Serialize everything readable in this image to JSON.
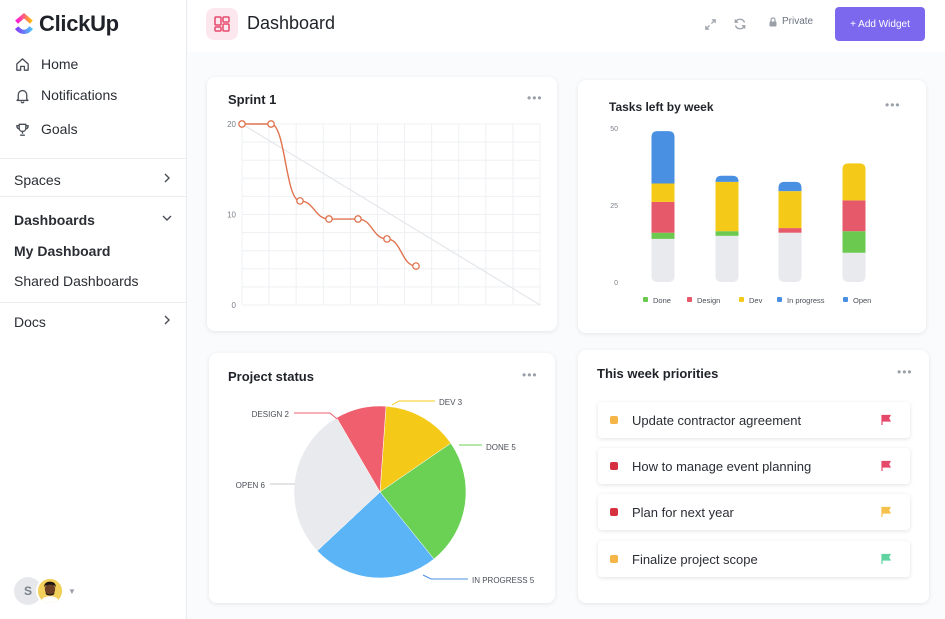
{
  "app": {
    "name": "ClickUp"
  },
  "sidebar": {
    "nav": [
      {
        "label": "Home",
        "icon": "home-icon"
      },
      {
        "label": "Notifications",
        "icon": "bell-icon"
      },
      {
        "label": "Goals",
        "icon": "trophy-icon"
      }
    ],
    "spaces_label": "Spaces",
    "dashboards_label": "Dashboards",
    "my_dashboard_label": "My Dashboard",
    "shared_dashboards_label": "Shared Dashboards",
    "docs_label": "Docs",
    "avatar_initial": "S"
  },
  "header": {
    "title": "Dashboard",
    "private_label": "Private",
    "add_widget_label": "+ Add Widget"
  },
  "sprint": {
    "title": "Sprint 1",
    "chart_data": {
      "type": "line",
      "title": "Sprint 1",
      "y_ticks": [
        "20",
        "10",
        "0"
      ],
      "ylim": [
        0,
        20
      ],
      "series": [
        {
          "values": [
            20,
            20,
            11.5,
            9.5,
            9.5,
            7.3,
            4.3
          ]
        }
      ],
      "ideal_line": [
        20,
        0
      ],
      "grid": true
    }
  },
  "tasks": {
    "title": "Tasks left by week",
    "chart_data": {
      "type": "bar",
      "stacked": true,
      "title": "Tasks left by week",
      "y_ticks": [
        "50",
        "25",
        "0"
      ],
      "ylim": [
        0,
        50
      ],
      "categories": [
        "",
        "",
        "",
        ""
      ],
      "series": [
        {
          "name": "Done",
          "color": "#6bc950",
          "values": [
            2,
            1.5,
            0,
            7
          ]
        },
        {
          "name": "Design",
          "color": "#e5596a",
          "values": [
            10,
            0,
            1.5,
            10
          ]
        },
        {
          "name": "Dev",
          "color": "#f5c918",
          "values": [
            6,
            16,
            12,
            12
          ]
        },
        {
          "name": "In progress",
          "color": "#4a90e2",
          "values": [
            17,
            2,
            3,
            0
          ]
        },
        {
          "name": "Open",
          "color": "#e9eaee",
          "values": [
            14,
            15,
            16,
            9.5
          ]
        }
      ],
      "legend_position": "bottom"
    }
  },
  "project_status": {
    "title": "Project status",
    "chart_data": {
      "type": "pie",
      "title": "Project status",
      "slices": [
        {
          "label": "DEV 3",
          "name": "DEV",
          "value": 3,
          "color": "#f5c918"
        },
        {
          "label": "DONE 5",
          "name": "DONE",
          "value": 5,
          "color": "#6bd154"
        },
        {
          "label": "IN PROGRESS 5",
          "name": "IN PROGRESS",
          "value": 5,
          "color": "#5ab4f5"
        },
        {
          "label": "OPEN 6",
          "name": "OPEN",
          "value": 6,
          "color": "#e9eaee"
        },
        {
          "label": "DESIGN 2",
          "name": "DESIGN",
          "value": 2,
          "color": "#ef5f6e"
        }
      ]
    }
  },
  "priorities": {
    "title": "This week priorities",
    "items": [
      {
        "text": "Update contractor agreement",
        "dot_color": "#f5b547",
        "flag_color": "#e5496a"
      },
      {
        "text": "How to manage event planning",
        "dot_color": "#d63140",
        "flag_color": "#e5496a"
      },
      {
        "text": "Plan for next year",
        "dot_color": "#d63140",
        "flag_color": "#f5c14a"
      },
      {
        "text": "Finalize project scope",
        "dot_color": "#f5b547",
        "flag_color": "#5fd3a0"
      }
    ]
  }
}
